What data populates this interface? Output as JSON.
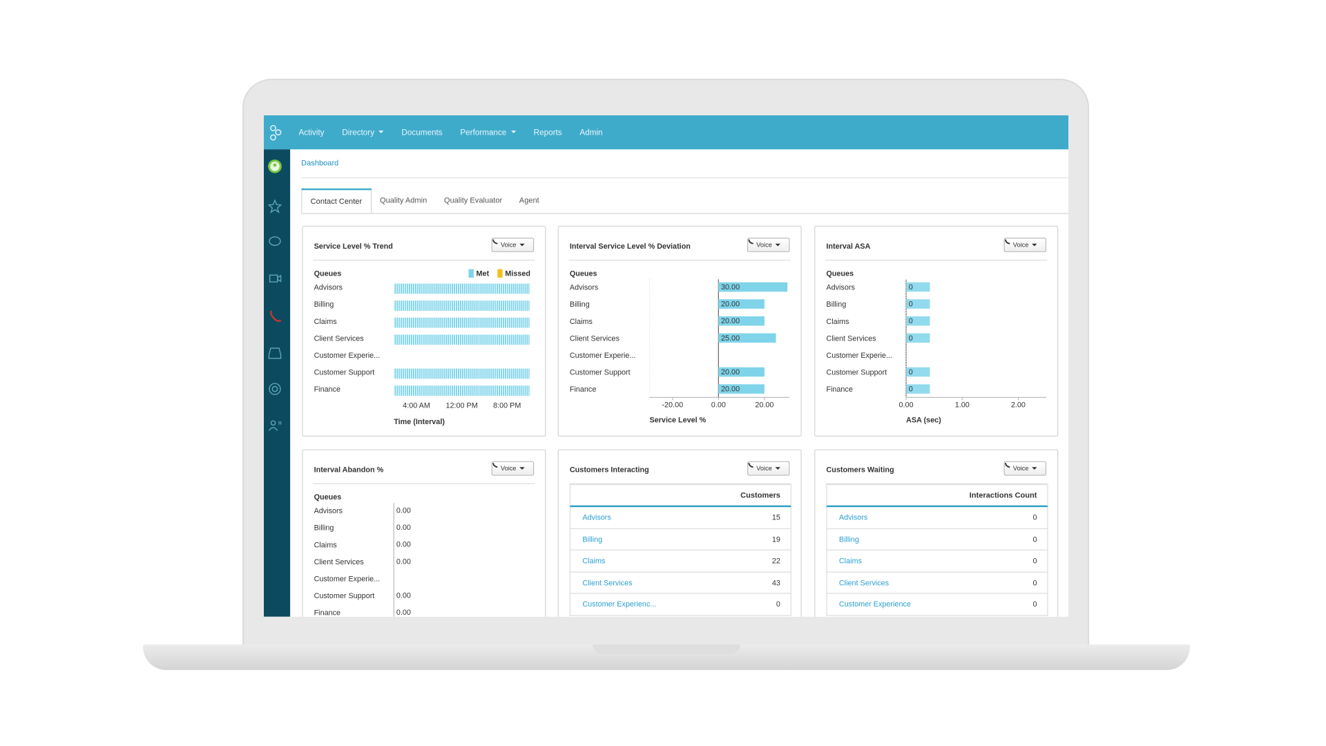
{
  "nav": {
    "items": [
      {
        "label": "Activity"
      },
      {
        "label": "Directory",
        "dropdown": true
      },
      {
        "label": "Documents"
      },
      {
        "label": "Performance",
        "dropdown": true
      },
      {
        "label": "Reports"
      },
      {
        "label": "Admin"
      }
    ]
  },
  "breadcrumb": "Dashboard",
  "tabs": {
    "items": [
      "Contact Center",
      "Quality Admin",
      "Quality Evaluator",
      "Agent"
    ],
    "active": 0
  },
  "voice_button": "Voice",
  "chart_data": [
    {
      "type": "timeline",
      "title": "Service Level % Trend",
      "category_label": "Queues",
      "legend": [
        {
          "name": "Met",
          "color": "#7fd4ea"
        },
        {
          "name": "Missed",
          "color": "#f4c01e"
        }
      ],
      "categories": [
        "Advisors",
        "Billing",
        "Claims",
        "Client Services",
        "Customer Experie...",
        "Customer Support",
        "Finance"
      ],
      "values": [
        [
          0,
          0,
          0,
          0,
          0,
          0,
          0,
          0,
          0,
          0,
          0,
          0,
          0,
          0,
          0,
          0,
          0,
          0,
          0,
          0,
          0,
          0,
          0,
          0
        ],
        [
          0,
          0,
          0,
          0,
          0,
          0,
          0,
          0,
          0,
          0,
          0,
          0,
          0,
          0,
          0,
          0,
          0,
          0,
          0,
          0,
          0,
          0,
          0,
          0
        ],
        [
          0,
          0,
          0,
          0,
          0,
          0,
          0,
          0,
          0,
          0,
          0,
          0,
          0,
          0,
          0,
          0,
          0,
          0,
          0,
          0,
          0,
          0,
          0,
          0
        ],
        [
          0,
          0,
          0,
          0,
          0,
          0,
          0,
          0,
          0,
          0,
          0,
          0,
          0,
          0,
          0,
          0,
          0,
          0,
          0,
          0,
          0,
          0,
          0,
          0
        ],
        null,
        [
          0,
          0,
          0,
          0,
          0,
          0,
          0,
          0,
          0,
          0,
          0,
          0,
          0,
          0,
          0,
          0,
          0,
          0,
          0,
          0,
          0,
          0,
          0,
          0
        ],
        [
          0,
          0,
          0,
          0,
          0,
          0,
          0,
          0,
          0,
          0,
          0,
          0,
          0,
          0,
          0,
          0,
          0,
          0,
          0,
          0,
          0,
          0,
          0,
          0
        ]
      ],
      "xlim": [
        0,
        24
      ],
      "xticks": [
        {
          "value": 4,
          "label": "4:00 AM"
        },
        {
          "value": 12,
          "label": "12:00 PM"
        },
        {
          "value": 20,
          "label": "8:00 PM"
        }
      ],
      "x_label": "Time (Interval)"
    },
    {
      "type": "hbar",
      "title": "Interval Service Level % Deviation",
      "category_label": "Queues",
      "color": "#7fd4ea",
      "categories": [
        "Advisors",
        "Billing",
        "Claims",
        "Client Services",
        "Customer Experie...",
        "Customer Support",
        "Finance"
      ],
      "values": [
        30,
        20,
        20,
        25,
        null,
        20,
        20
      ],
      "value_labels": [
        "30.00",
        "20.00",
        "20.00",
        "25.00",
        null,
        "20.00",
        "20.00"
      ],
      "xlim": [
        -30,
        31
      ],
      "xticks": [
        {
          "value": -20,
          "label": "-20.00"
        },
        {
          "value": 0,
          "label": "0.00"
        },
        {
          "value": 20,
          "label": "20.00"
        }
      ],
      "x_label": "Service Level %"
    },
    {
      "type": "hbar",
      "title": "Interval ASA",
      "category_label": "Queues",
      "color": "#7fd4ea",
      "categories": [
        "Advisors",
        "Billing",
        "Claims",
        "Client Services",
        "Customer Experie...",
        "Customer Support",
        "Finance"
      ],
      "values": [
        0,
        0,
        0,
        0,
        null,
        0,
        0
      ],
      "xlim": [
        0,
        2.5
      ],
      "xticks": [
        {
          "value": 0,
          "label": "0.00"
        },
        {
          "value": 1,
          "label": "1.00"
        },
        {
          "value": 2,
          "label": "2.00"
        }
      ],
      "x_label": "ASA (sec)"
    },
    {
      "type": "hbar",
      "title": "Interval Abandon %",
      "category_label": "Queues",
      "categories": [
        "Advisors",
        "Billing",
        "Claims",
        "Client Services",
        "Customer Experie...",
        "Customer Support",
        "Finance"
      ],
      "values": [
        0,
        0,
        0,
        0,
        null,
        0,
        0
      ],
      "value_labels": [
        "0.00",
        "0.00",
        "0.00",
        "0.00",
        null,
        "0.00",
        "0.00"
      ]
    }
  ],
  "tables": [
    {
      "title": "Customers Interacting",
      "header": "Customers",
      "rows": [
        {
          "name": "Advisors",
          "value": 15
        },
        {
          "name": "Billing",
          "value": 19
        },
        {
          "name": "Claims",
          "value": 22
        },
        {
          "name": "Client Services",
          "value": 43
        },
        {
          "name": "Customer Experienc...",
          "value": 0
        }
      ]
    },
    {
      "title": "Customers Waiting",
      "header": "Interactions Count",
      "rows": [
        {
          "name": "Advisors",
          "value": 0
        },
        {
          "name": "Billing",
          "value": 0
        },
        {
          "name": "Claims",
          "value": 0
        },
        {
          "name": "Client Services",
          "value": 0
        },
        {
          "name": "Customer Experience",
          "value": 0
        }
      ]
    }
  ]
}
